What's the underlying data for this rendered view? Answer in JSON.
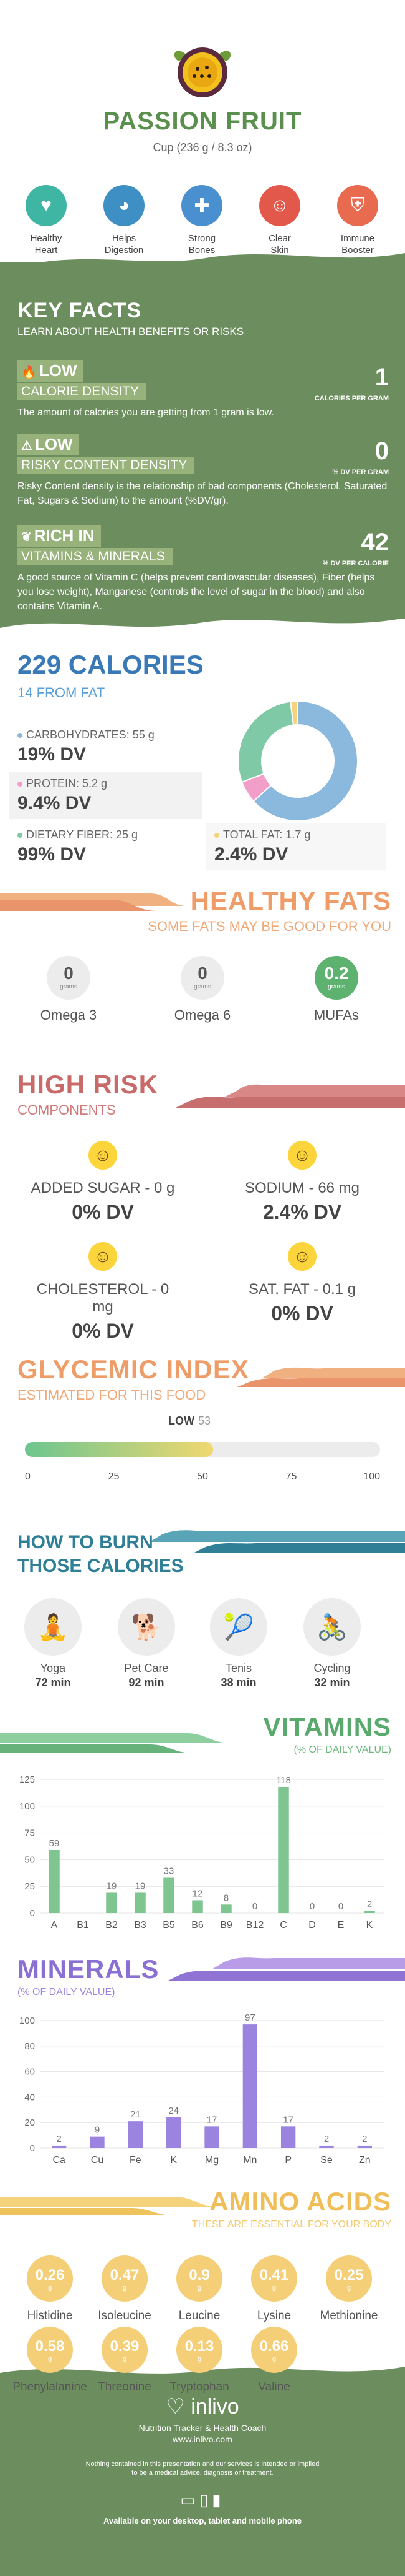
{
  "header": {
    "title": "PASSION FRUIT",
    "subtitle": "Cup (236 g / 8.3 oz)",
    "benefits": [
      {
        "label1": "Healthy",
        "label2": "Heart",
        "icon": "heart-icon",
        "color": "#3fb5a3"
      },
      {
        "label1": "Helps",
        "label2": "Digestion",
        "icon": "stomach-icon",
        "color": "#3d8fc4"
      },
      {
        "label1": "Strong",
        "label2": "Bones",
        "icon": "bone-icon",
        "color": "#4a90d0"
      },
      {
        "label1": "Clear",
        "label2": "Skin",
        "icon": "face-icon",
        "color": "#e2584b"
      },
      {
        "label1": "Immune",
        "label2": "Booster",
        "icon": "shield-icon",
        "color": "#e86a4f"
      }
    ]
  },
  "key_facts": {
    "title": "KEY FACTS",
    "subtitle": "LEARN ABOUT HEALTH BENEFITS OR RISKS",
    "items": [
      {
        "level": "LOW",
        "name": "CALORIE DENSITY",
        "value": "1",
        "unit": "CALORIES PER GRAM",
        "desc": "The amount of calories you are getting from 1 gram is low."
      },
      {
        "level": "LOW",
        "name": "RISKY CONTENT DENSITY",
        "value": "0",
        "unit": "% DV PER GRAM",
        "desc": "Risky Content density is the relationship of bad components (Cholesterol, Saturated Fat, Sugars & Sodium) to the amount (%DV/gr)."
      },
      {
        "level": "RICH  IN",
        "name": "VITAMINS & MINERALS",
        "value": "42",
        "unit": "% DV PER CALORIE",
        "desc": "A good source of Vitamin C (helps prevent cardiovascular diseases), Fiber (helps you lose weight), Manganese (controls the level of sugar in the blood) and also contains Vitamin A."
      }
    ]
  },
  "calories": {
    "title": "229 CALORIES",
    "subtitle": "14 FROM FAT",
    "macros": [
      {
        "name": "CARBOHYDRATES: 55 g",
        "dv": "19% DV",
        "color": "#8bb8dd"
      },
      {
        "name": "PROTEIN: 5.2 g",
        "dv": "9.4% DV",
        "color": "#f19ec9"
      },
      {
        "name": "DIETARY FIBER: 25 g",
        "dv": "99% DV",
        "color": "#7fc9a6"
      },
      {
        "name": "TOTAL FAT: 1.7 g",
        "dv": "2.4% DV",
        "color": "#f5d27c"
      }
    ],
    "donut": [
      {
        "name": "Carbohydrates",
        "value": 55,
        "color": "#8bb8dd"
      },
      {
        "name": "Protein",
        "value": 5.2,
        "color": "#f19ec9"
      },
      {
        "name": "Dietary Fiber",
        "value": 25,
        "color": "#7fc9a6"
      },
      {
        "name": "Total Fat",
        "value": 1.7,
        "color": "#f5d27c"
      }
    ]
  },
  "healthy_fats": {
    "title": "HEALTHY FATS",
    "subtitle": "SOME FATS MAY BE GOOD FOR YOU",
    "items": [
      {
        "value": "0",
        "unit": "grams",
        "label": "Omega 3",
        "highlight": false
      },
      {
        "value": "0",
        "unit": "grams",
        "label": "Omega 6",
        "highlight": false
      },
      {
        "value": "0.2",
        "unit": "grams",
        "label": "MUFAs",
        "highlight": true
      }
    ]
  },
  "high_risk": {
    "title": "HIGH RISK",
    "subtitle": "COMPONENTS",
    "items": [
      {
        "name": "ADDED SUGAR - 0 g",
        "dv": "0% DV"
      },
      {
        "name": "SODIUM - 66 mg",
        "dv": "2.4% DV"
      },
      {
        "name": "CHOLESTEROL - 0 mg",
        "dv": "0% DV"
      },
      {
        "name": "SAT. FAT - 0.1 g",
        "dv": "0% DV"
      }
    ]
  },
  "glycemic": {
    "title": "GLYCEMIC INDEX",
    "subtitle": "ESTIMATED FOR THIS FOOD",
    "level": "LOW",
    "value": 53,
    "value_label": "53",
    "ticks": [
      "0",
      "25",
      "50",
      "75",
      "100"
    ]
  },
  "burn": {
    "title1": "HOW TO BURN",
    "title2": "THOSE CALORIES",
    "items": [
      {
        "name": "Yoga",
        "time": "72 min",
        "icon": "yoga-icon",
        "glyph": "🧘"
      },
      {
        "name": "Pet Care",
        "time": "92 min",
        "icon": "pet-care-icon",
        "glyph": "🐕"
      },
      {
        "name": "Tenis",
        "time": "38 min",
        "icon": "tennis-icon",
        "glyph": "🎾"
      },
      {
        "name": "Cycling",
        "time": "32 min",
        "icon": "cycling-icon",
        "glyph": "🚴"
      }
    ]
  },
  "vitamins_header": {
    "title": "VITAMINS",
    "subtitle": "(% OF DAILY VALUE)"
  },
  "minerals_header": {
    "title": "MINERALS",
    "subtitle": "(% OF DAILY VALUE)"
  },
  "chart_data": [
    {
      "type": "bar",
      "categories": [
        "A",
        "B1",
        "B2",
        "B3",
        "B5",
        "B6",
        "B9",
        "B12",
        "C",
        "D",
        "E",
        "K"
      ],
      "values": [
        59,
        0,
        19,
        19,
        33,
        12,
        8,
        0,
        118,
        0,
        0,
        2
      ],
      "value_labels": [
        "59",
        "",
        "19",
        "19",
        "33",
        "12",
        "8",
        "0",
        "118",
        "0",
        "0",
        "2"
      ],
      "yticks": [
        0,
        25,
        50,
        75,
        100,
        125
      ],
      "ylim": [
        0,
        125
      ],
      "color": "#7fc58f"
    },
    {
      "type": "bar",
      "categories": [
        "Ca",
        "Cu",
        "Fe",
        "K",
        "Mg",
        "Mn",
        "P",
        "Se",
        "Zn"
      ],
      "values": [
        2,
        9,
        21,
        24,
        17,
        97,
        17,
        2,
        2
      ],
      "value_labels": [
        "2",
        "9",
        "21",
        "24",
        "17",
        "97",
        "17",
        "2",
        "2"
      ],
      "yticks": [
        0,
        20,
        40,
        60,
        80,
        100
      ],
      "ylim": [
        0,
        100
      ],
      "color": "#9b84e0"
    }
  ],
  "amino": {
    "title": "AMINO ACIDS",
    "subtitle": "THESE ARE ESSENTIAL FOR YOUR BODY",
    "items": [
      {
        "value": "0.26",
        "label": "Histidine"
      },
      {
        "value": "0.47",
        "label": "Isoleucine"
      },
      {
        "value": "0.9",
        "label": "Leucine"
      },
      {
        "value": "0.41",
        "label": "Lysine"
      },
      {
        "value": "0.25",
        "label": "Methionine"
      },
      {
        "value": "0.58",
        "label": "Phenylalanine"
      },
      {
        "value": "0.39",
        "label": "Threonine"
      },
      {
        "value": "0.13",
        "label": "Tryptophan"
      },
      {
        "value": "0.66",
        "label": "Valine"
      }
    ],
    "unit": "g"
  },
  "footer": {
    "brand": "inlivo",
    "tagline": "Nutrition Tracker & Health Coach",
    "url": "www.inlivo.com",
    "disclaimer1": "Nothing contained in this presentation and our services is intended or implied",
    "disclaimer2": "to be a medical advice, diagnosis or treatment.",
    "available": "Available on your desktop, tablet and mobile phone"
  }
}
